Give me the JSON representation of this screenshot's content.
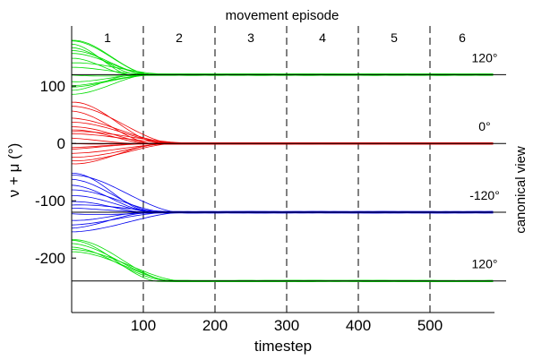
{
  "chart_data": {
    "type": "line",
    "title": "movement episode",
    "xlabel": "timestep",
    "ylabel": "ν + μ (°)",
    "right_label": "canonical view",
    "xlim": [
      0,
      590
    ],
    "ylim": [
      -295,
      205
    ],
    "x_ticks": [
      100,
      200,
      300,
      400,
      500
    ],
    "y_ticks": [
      100,
      0,
      -100,
      -200
    ],
    "episode_boundaries": [
      100,
      200,
      300,
      400,
      500
    ],
    "episodes": [
      "1",
      "2",
      "3",
      "4",
      "5",
      "6"
    ],
    "grid": false,
    "series": [
      {
        "name": "120°",
        "color": "#00dd00",
        "target": 120,
        "start_values": [
          180,
          176,
          172,
          168,
          163,
          158,
          150,
          140,
          130,
          118,
          110,
          103,
          98,
          92,
          85
        ],
        "converge_at": 110
      },
      {
        "name": "0°",
        "color": "#ee0000",
        "target": 0,
        "start_values": [
          72,
          62,
          55,
          45,
          38,
          30,
          25,
          20,
          14,
          8,
          2,
          -5,
          -10,
          -18,
          -25,
          -32,
          -36
        ],
        "converge_at": 140
      },
      {
        "name": "-120°",
        "color": "#0000ee",
        "target": -120,
        "start_values": [
          -52,
          -58,
          -64,
          -72,
          -80,
          -90,
          -100,
          -108,
          -116,
          -124,
          -132,
          -140,
          -148,
          -155
        ],
        "converge_at": 130
      },
      {
        "name": "120°",
        "color": "#00dd00",
        "target": -240,
        "start_values": [
          -168,
          -172,
          -176,
          -180,
          -184,
          -188
        ],
        "converge_at": 140
      }
    ]
  }
}
